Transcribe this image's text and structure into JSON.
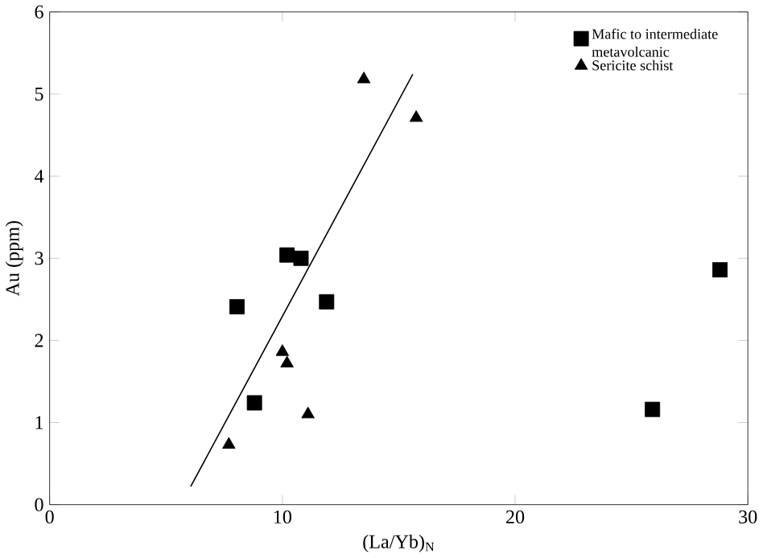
{
  "chart_data": {
    "type": "scatter",
    "xlabel": "(La/Yb)$_{N}$",
    "ylabel": "Au (ppm)",
    "xlim": [
      0,
      30
    ],
    "ylim": [
      0,
      6
    ],
    "xticks": [
      0,
      10,
      20,
      30
    ],
    "yticks": [
      0,
      1,
      2,
      3,
      4,
      5,
      6
    ],
    "legend": "top right",
    "series": [
      {
        "name": "Mafic to intermediate metavolcanic",
        "color": "#000000",
        "marker": "square",
        "x": [
          8.05,
          10.2,
          10.8,
          11.9,
          8.8,
          25.9,
          28.8
        ],
        "values": [
          2.41,
          3.04,
          3.0,
          2.47,
          1.24,
          1.16,
          2.86
        ]
      },
      {
        "name": "Sericite schist",
        "color": "#000000",
        "marker": "triangle",
        "x": [
          7.7,
          10.0,
          10.2,
          11.1,
          13.5,
          15.75
        ],
        "values": [
          0.73,
          1.86,
          1.72,
          1.1,
          5.18,
          4.71
        ]
      },
      {
        "type": "line",
        "color": "#000000",
        "x": [
          6.06,
          15.6
        ],
        "values": [
          0.22,
          5.24
        ]
      }
    ]
  }
}
